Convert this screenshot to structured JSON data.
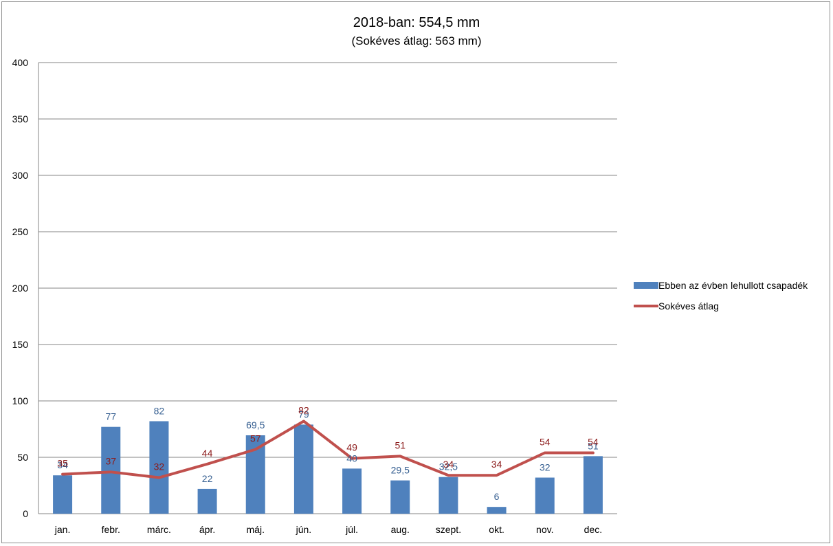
{
  "chart_data": {
    "type": "bar",
    "title": "2018-ban: 554,5 mm",
    "subtitle": "(Sokéves átlag: 563 mm)",
    "xlabel": "",
    "ylabel": "",
    "ylim": [
      0,
      400
    ],
    "yticks": [
      0,
      50,
      100,
      150,
      200,
      250,
      300,
      350,
      400
    ],
    "grid": true,
    "legend_position": "right",
    "categories": [
      "jan.",
      "febr.",
      "márc.",
      "ápr.",
      "máj.",
      "jún.",
      "júl.",
      "aug.",
      "szept.",
      "okt.",
      "nov.",
      "dec."
    ],
    "series": [
      {
        "name": "Ebben az évben lehullott csapadék",
        "type": "bar",
        "color": "#4f81bd",
        "label_color": "#376092",
        "values": [
          34,
          77,
          82,
          22,
          69.5,
          79,
          40,
          29.5,
          32.5,
          6,
          32,
          51
        ],
        "labels": [
          "34",
          "77",
          "82",
          "22",
          "69,5",
          "79",
          "40",
          "29,5",
          "32,5",
          "6",
          "32",
          "51"
        ]
      },
      {
        "name": "Sokéves átlag",
        "type": "line",
        "color": "#c0504d",
        "label_color": "#8b1a1a",
        "values": [
          35,
          37,
          32,
          44,
          57,
          82,
          49,
          51,
          34,
          34,
          54,
          54
        ],
        "labels": [
          "35",
          "37",
          "32",
          "44",
          "57",
          "82",
          "49",
          "51",
          "34",
          "34",
          "54",
          "54"
        ]
      }
    ]
  }
}
